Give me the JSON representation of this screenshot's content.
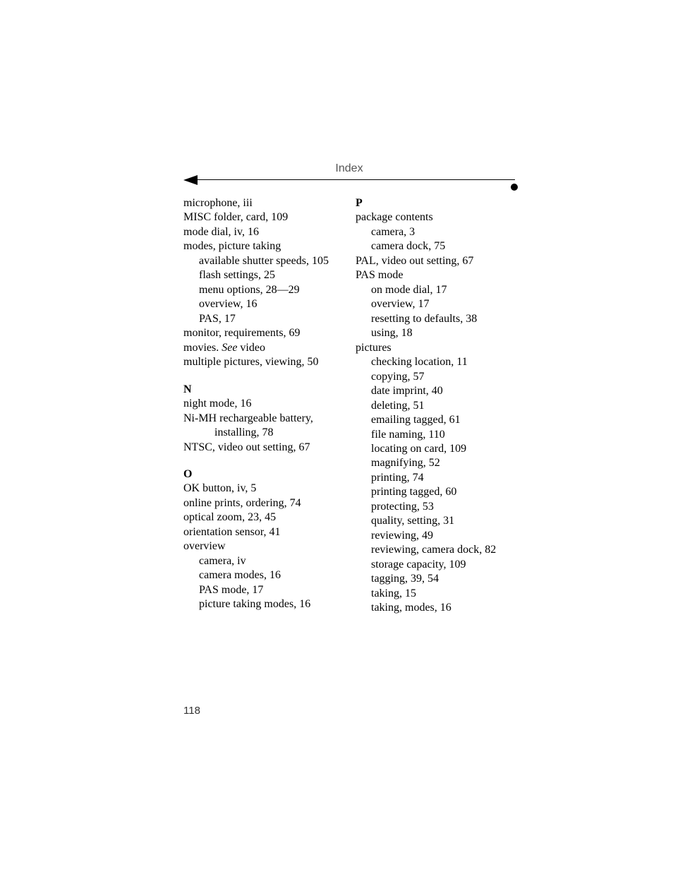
{
  "header": {
    "title": "Index"
  },
  "pageNumber": "118",
  "left": {
    "m": [
      {
        "t": "microphone, iii"
      },
      {
        "t": "MISC folder, card, 109"
      },
      {
        "t": "mode dial, iv, 16"
      },
      {
        "t": "modes, picture taking"
      },
      {
        "t": "available shutter speeds, 105",
        "cls": "sub"
      },
      {
        "t": "flash settings, 25",
        "cls": "sub"
      },
      {
        "t": "menu options, 28—29",
        "cls": "sub"
      },
      {
        "t": "overview, 16",
        "cls": "sub"
      },
      {
        "t": "PAS, 17",
        "cls": "sub"
      },
      {
        "t": "monitor, requirements, 69"
      },
      {
        "t": "movies. ",
        "italicSuffix": "See",
        "after": " video"
      },
      {
        "t": "multiple pictures, viewing, 50"
      }
    ],
    "nLabel": "N",
    "n": [
      {
        "t": "night mode, 16"
      },
      {
        "t": "Ni-MH rechargeable battery,"
      },
      {
        "t": "installing, 78",
        "cls": "sub2"
      },
      {
        "t": "NTSC, video out setting, 67"
      }
    ],
    "oLabel": "O",
    "o": [
      {
        "t": "OK button, iv, 5"
      },
      {
        "t": "online prints, ordering, 74"
      },
      {
        "t": "optical zoom, 23, 45"
      },
      {
        "t": "orientation sensor, 41"
      },
      {
        "t": "overview"
      },
      {
        "t": "camera, iv",
        "cls": "sub"
      },
      {
        "t": "camera modes, 16",
        "cls": "sub"
      },
      {
        "t": "PAS mode, 17",
        "cls": "sub"
      },
      {
        "t": "picture taking modes, 16",
        "cls": "sub"
      }
    ]
  },
  "right": {
    "pLabel": "P",
    "p": [
      {
        "t": "package contents"
      },
      {
        "t": "camera, 3",
        "cls": "sub"
      },
      {
        "t": "camera dock, 75",
        "cls": "sub"
      },
      {
        "t": "PAL, video out setting, 67"
      },
      {
        "t": "PAS mode"
      },
      {
        "t": "on mode dial, 17",
        "cls": "sub"
      },
      {
        "t": "overview, 17",
        "cls": "sub"
      },
      {
        "t": "resetting to defaults, 38",
        "cls": "sub"
      },
      {
        "t": "using, 18",
        "cls": "sub"
      },
      {
        "t": "pictures"
      },
      {
        "t": "checking location, 11",
        "cls": "sub"
      },
      {
        "t": "copying, 57",
        "cls": "sub"
      },
      {
        "t": "date imprint, 40",
        "cls": "sub"
      },
      {
        "t": "deleting, 51",
        "cls": "sub"
      },
      {
        "t": "emailing tagged, 61",
        "cls": "sub"
      },
      {
        "t": "file naming, 110",
        "cls": "sub"
      },
      {
        "t": "locating on card, 109",
        "cls": "sub"
      },
      {
        "t": "magnifying, 52",
        "cls": "sub"
      },
      {
        "t": "printing, 74",
        "cls": "sub"
      },
      {
        "t": "printing tagged, 60",
        "cls": "sub"
      },
      {
        "t": "protecting, 53",
        "cls": "sub"
      },
      {
        "t": "quality, setting, 31",
        "cls": "sub"
      },
      {
        "t": "reviewing, 49",
        "cls": "sub"
      },
      {
        "t": "reviewing, camera dock, 82",
        "cls": "sub"
      },
      {
        "t": "storage capacity, 109",
        "cls": "sub"
      },
      {
        "t": "tagging, 39, 54",
        "cls": "sub"
      },
      {
        "t": "taking, 15",
        "cls": "sub"
      },
      {
        "t": "taking, modes, 16",
        "cls": "sub"
      }
    ]
  }
}
